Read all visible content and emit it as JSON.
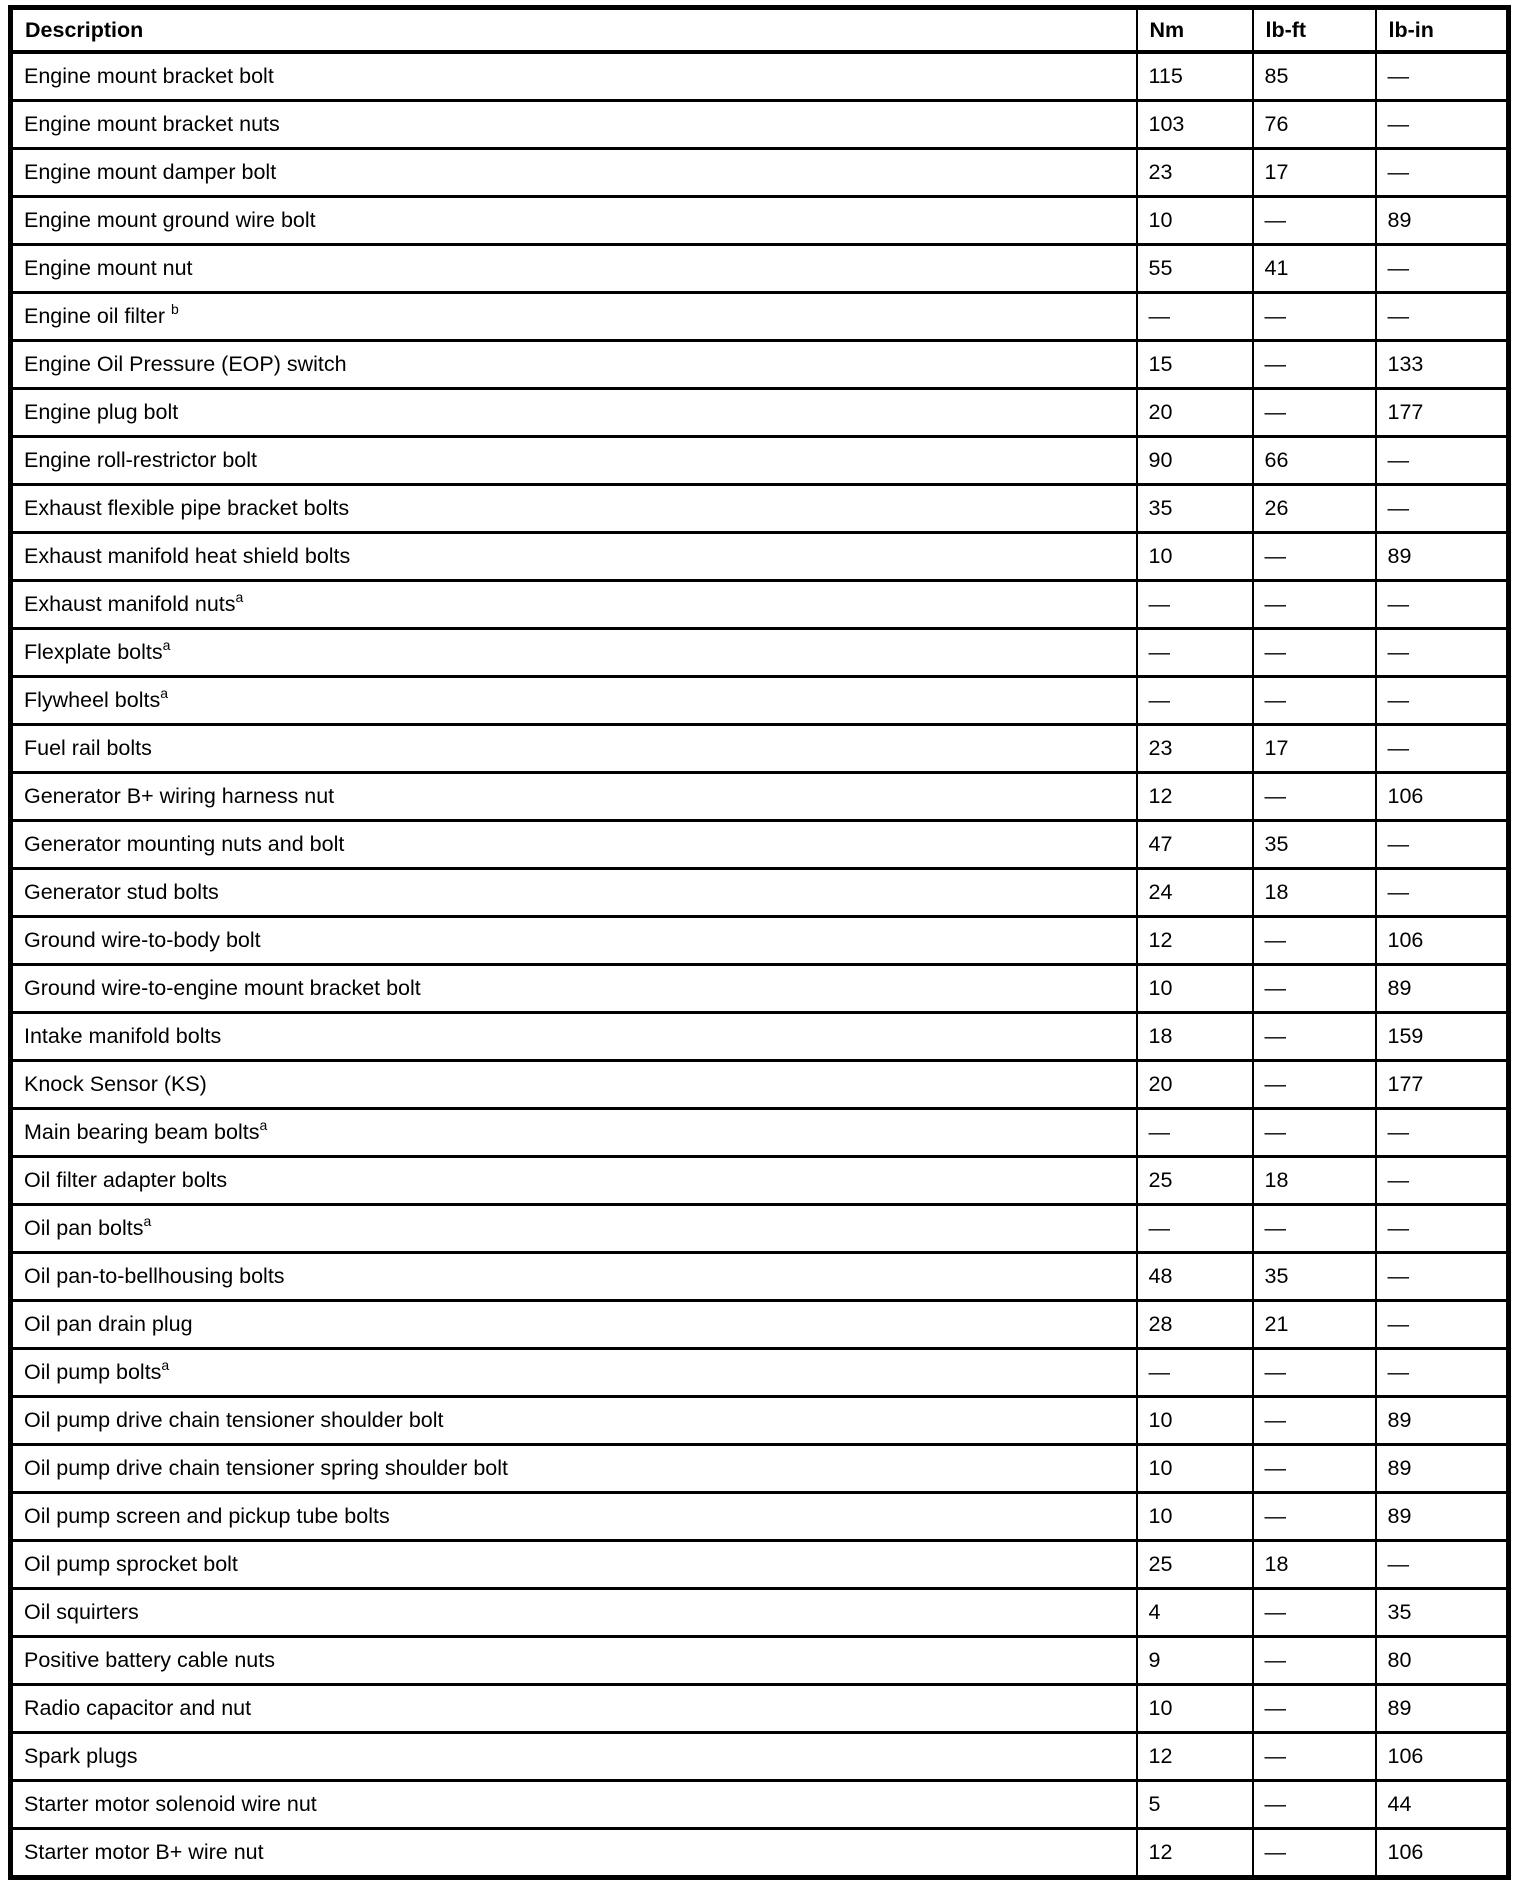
{
  "table": {
    "columns": [
      "Description",
      "Nm",
      "lb-ft",
      "lb-in"
    ],
    "rows": [
      {
        "description": "Engine mount bracket bolt",
        "sup": "",
        "nm": "115",
        "lbft": "85",
        "lbin": "—"
      },
      {
        "description": "Engine mount bracket nuts",
        "sup": "",
        "nm": "103",
        "lbft": "76",
        "lbin": "—"
      },
      {
        "description": "Engine mount damper bolt",
        "sup": "",
        "nm": "23",
        "lbft": "17",
        "lbin": "—"
      },
      {
        "description": "Engine mount ground wire bolt",
        "sup": "",
        "nm": "10",
        "lbft": "—",
        "lbin": "89"
      },
      {
        "description": "Engine mount nut",
        "sup": "",
        "nm": "55",
        "lbft": "41",
        "lbin": "—"
      },
      {
        "description": "Engine oil filter ",
        "sup": "b",
        "nm": "—",
        "lbft": "—",
        "lbin": "—"
      },
      {
        "description": "Engine Oil Pressure (EOP) switch",
        "sup": "",
        "nm": "15",
        "lbft": "—",
        "lbin": "133"
      },
      {
        "description": "Engine plug bolt",
        "sup": "",
        "nm": "20",
        "lbft": "—",
        "lbin": "177"
      },
      {
        "description": "Engine roll-restrictor bolt",
        "sup": "",
        "nm": "90",
        "lbft": "66",
        "lbin": "—"
      },
      {
        "description": "Exhaust flexible pipe bracket bolts",
        "sup": "",
        "nm": "35",
        "lbft": "26",
        "lbin": "—"
      },
      {
        "description": "Exhaust manifold heat shield bolts",
        "sup": "",
        "nm": "10",
        "lbft": "—",
        "lbin": "89"
      },
      {
        "description": "Exhaust manifold nuts",
        "sup": "a",
        "nm": "—",
        "lbft": "—",
        "lbin": "—"
      },
      {
        "description": "Flexplate bolts",
        "sup": "a",
        "nm": "—",
        "lbft": "—",
        "lbin": "—"
      },
      {
        "description": "Flywheel bolts",
        "sup": "a",
        "nm": "—",
        "lbft": "—",
        "lbin": "—"
      },
      {
        "description": "Fuel rail bolts",
        "sup": "",
        "nm": "23",
        "lbft": "17",
        "lbin": "—"
      },
      {
        "description": "Generator B+ wiring harness nut",
        "sup": "",
        "nm": "12",
        "lbft": "—",
        "lbin": "106"
      },
      {
        "description": "Generator mounting nuts and bolt",
        "sup": "",
        "nm": "47",
        "lbft": "35",
        "lbin": "—"
      },
      {
        "description": "Generator stud bolts",
        "sup": "",
        "nm": "24",
        "lbft": "18",
        "lbin": "—"
      },
      {
        "description": "Ground wire-to-body bolt",
        "sup": "",
        "nm": "12",
        "lbft": "—",
        "lbin": "106"
      },
      {
        "description": "Ground wire-to-engine mount bracket bolt",
        "sup": "",
        "nm": "10",
        "lbft": "—",
        "lbin": "89"
      },
      {
        "description": "Intake manifold bolts",
        "sup": "",
        "nm": "18",
        "lbft": "—",
        "lbin": "159"
      },
      {
        "description": "Knock Sensor (KS)",
        "sup": "",
        "nm": "20",
        "lbft": "—",
        "lbin": "177"
      },
      {
        "description": "Main bearing beam bolts",
        "sup": "a",
        "nm": "—",
        "lbft": "—",
        "lbin": "—"
      },
      {
        "description": "Oil filter adapter bolts",
        "sup": "",
        "nm": "25",
        "lbft": "18",
        "lbin": "—"
      },
      {
        "description": "Oil pan bolts",
        "sup": "a",
        "nm": "—",
        "lbft": "—",
        "lbin": "—"
      },
      {
        "description": "Oil pan-to-bellhousing bolts",
        "sup": "",
        "nm": "48",
        "lbft": "35",
        "lbin": "—"
      },
      {
        "description": "Oil pan drain plug",
        "sup": "",
        "nm": "28",
        "lbft": "21",
        "lbin": "—"
      },
      {
        "description": "Oil pump bolts",
        "sup": "a",
        "nm": "—",
        "lbft": "—",
        "lbin": "—"
      },
      {
        "description": "Oil pump drive chain tensioner shoulder bolt",
        "sup": "",
        "nm": "10",
        "lbft": "—",
        "lbin": "89"
      },
      {
        "description": "Oil pump drive chain tensioner spring shoulder bolt",
        "sup": "",
        "nm": "10",
        "lbft": "—",
        "lbin": "89"
      },
      {
        "description": "Oil pump screen and pickup tube bolts",
        "sup": "",
        "nm": "10",
        "lbft": "—",
        "lbin": "89"
      },
      {
        "description": "Oil pump sprocket bolt",
        "sup": "",
        "nm": "25",
        "lbft": "18",
        "lbin": "—"
      },
      {
        "description": "Oil squirters",
        "sup": "",
        "nm": "4",
        "lbft": "—",
        "lbin": "35"
      },
      {
        "description": "Positive battery cable nuts",
        "sup": "",
        "nm": "9",
        "lbft": "—",
        "lbin": "80"
      },
      {
        "description": "Radio capacitor and nut",
        "sup": "",
        "nm": "10",
        "lbft": "—",
        "lbin": "89"
      },
      {
        "description": "Spark plugs",
        "sup": "",
        "nm": "12",
        "lbft": "—",
        "lbin": "106"
      },
      {
        "description": "Starter motor solenoid wire nut",
        "sup": "",
        "nm": "5",
        "lbft": "—",
        "lbin": "44"
      },
      {
        "description": "Starter motor B+ wire nut",
        "sup": "",
        "nm": "12",
        "lbft": "—",
        "lbin": "106"
      }
    ]
  },
  "colors": {
    "border": "#000000",
    "background": "#ffffff",
    "text": "#000000"
  }
}
